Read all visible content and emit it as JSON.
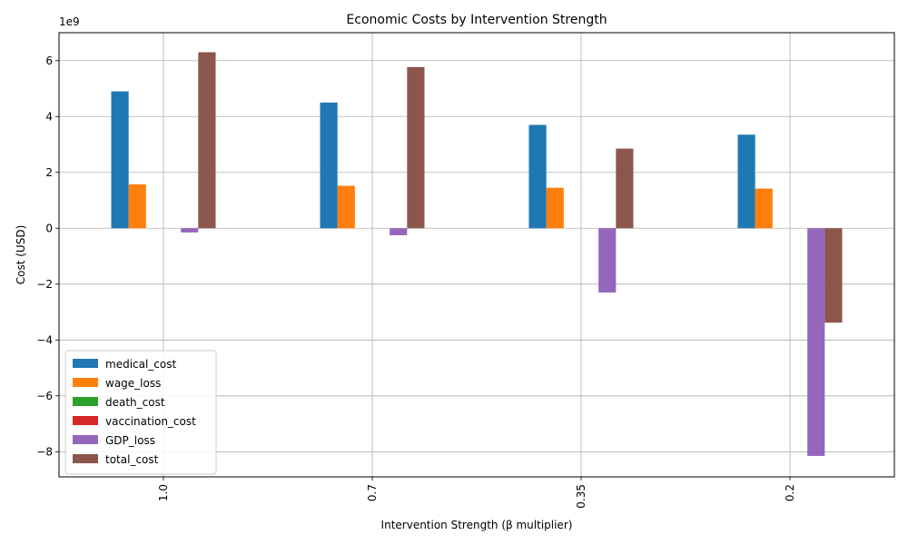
{
  "chart_data": {
    "type": "bar",
    "title": "Economic Costs by Intervention Strength",
    "xlabel": "Intervention Strength (β multiplier)",
    "ylabel": "Cost (USD)",
    "scale_label": "1e9",
    "y_scale": 1000000000,
    "categories": [
      "1.0",
      "0.7",
      "0.35",
      "0.2"
    ],
    "ylim": [
      -8.9,
      7.0
    ],
    "yticks": [
      -8,
      -6,
      -4,
      -2,
      0,
      2,
      4,
      6
    ],
    "grid": true,
    "legend_position": "lower-left",
    "series": [
      {
        "name": "medical_cost",
        "color": "#1f77b4",
        "values": [
          4.9,
          4.5,
          3.7,
          3.35
        ]
      },
      {
        "name": "wage_loss",
        "color": "#ff7f0e",
        "values": [
          1.57,
          1.52,
          1.45,
          1.42
        ]
      },
      {
        "name": "death_cost",
        "color": "#2ca02c",
        "values": [
          0,
          0,
          0,
          0
        ]
      },
      {
        "name": "vaccination_cost",
        "color": "#d62728",
        "values": [
          0,
          0,
          0,
          0
        ]
      },
      {
        "name": "GDP_loss",
        "color": "#9467bd",
        "values": [
          -0.15,
          -0.25,
          -2.3,
          -8.15
        ]
      },
      {
        "name": "total_cost",
        "color": "#8c564b",
        "values": [
          6.3,
          5.77,
          2.85,
          -3.38
        ]
      }
    ]
  }
}
